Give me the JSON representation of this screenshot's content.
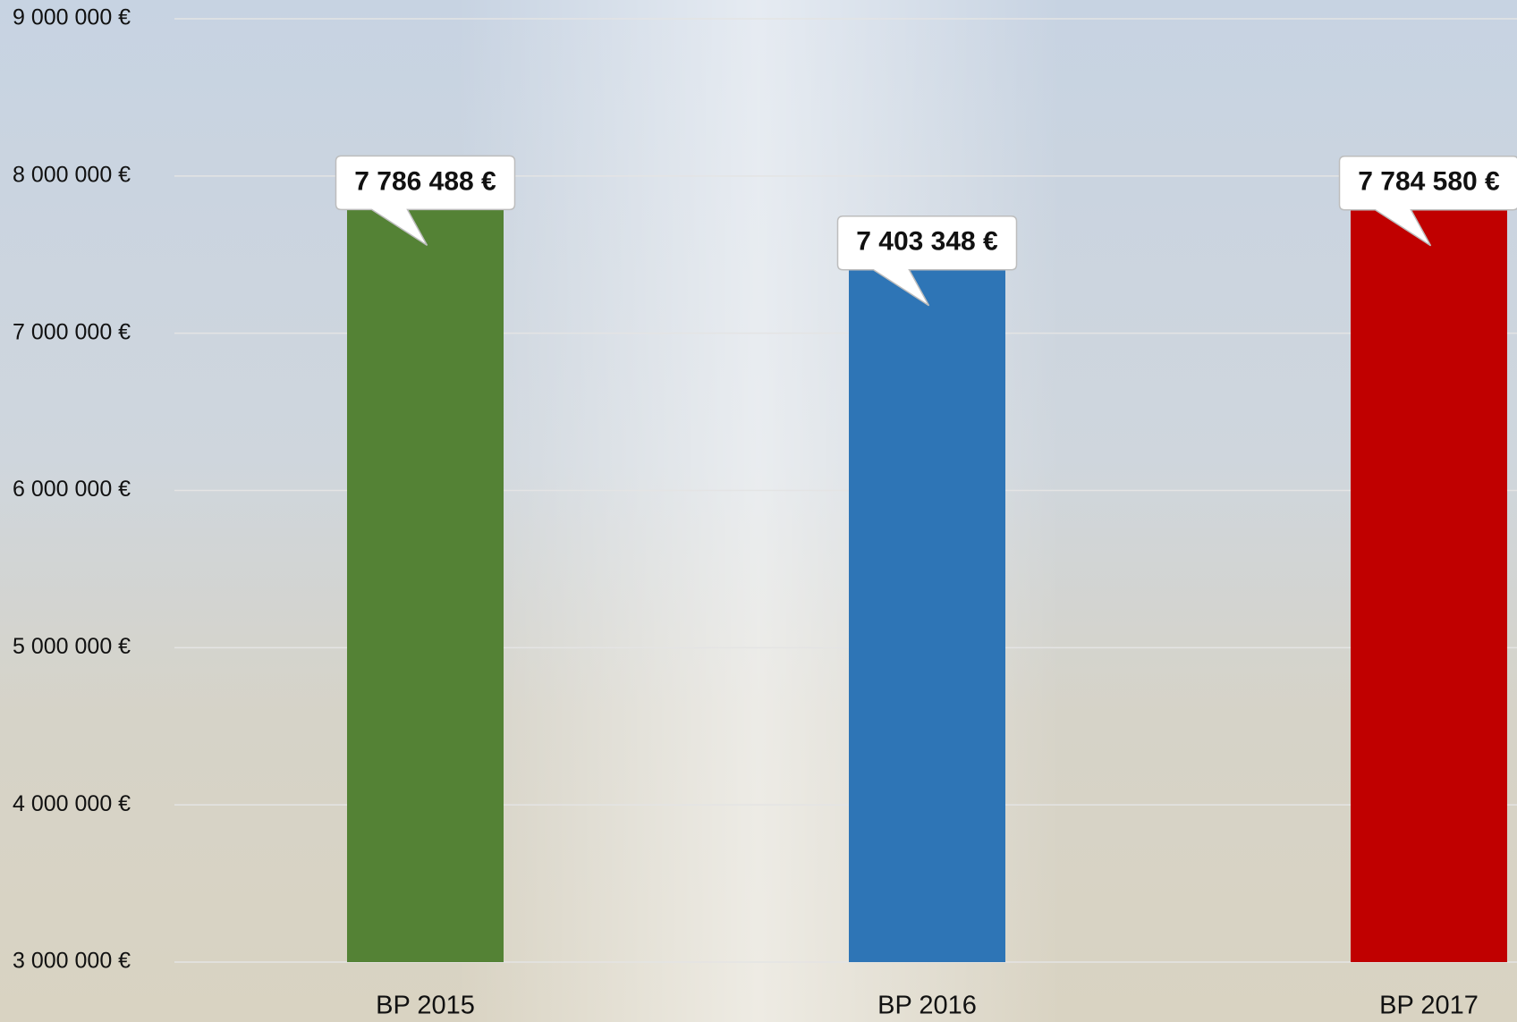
{
  "chart_data": {
    "type": "bar",
    "categories": [
      "BP 2015",
      "BP 2016",
      "BP 2017"
    ],
    "values": [
      7786488,
      7403348,
      7784580
    ],
    "value_labels": [
      "7 786 488 €",
      "7 403 348 €",
      "7 784 580 €"
    ],
    "colors": [
      "#548235",
      "#2e75b6",
      "#c00000"
    ],
    "ylim": [
      3000000,
      9000000
    ],
    "yticks": [
      {
        "value": 3000000,
        "label": "3 000 000 €"
      },
      {
        "value": 4000000,
        "label": "4 000 000 €"
      },
      {
        "value": 5000000,
        "label": "5 000 000 €"
      },
      {
        "value": 6000000,
        "label": "6 000 000 €"
      },
      {
        "value": 7000000,
        "label": "7 000 000 €"
      },
      {
        "value": 8000000,
        "label": "8 000 000 €"
      },
      {
        "value": 9000000,
        "label": "9 000 000 €"
      }
    ],
    "grid": true
  }
}
